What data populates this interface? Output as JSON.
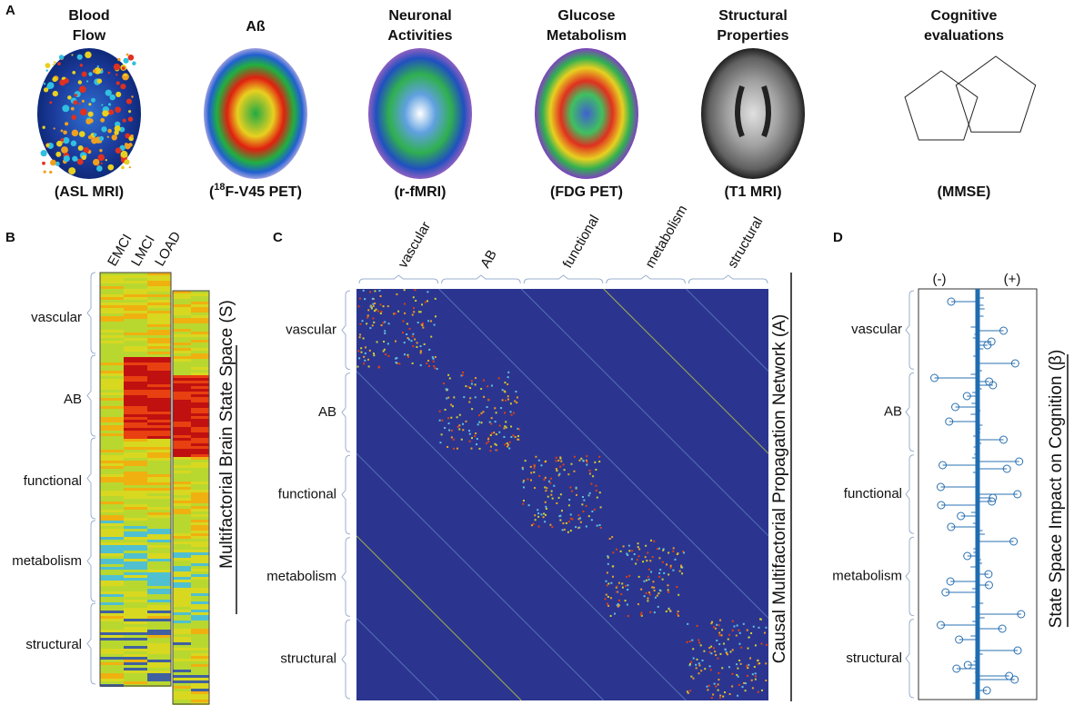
{
  "panel_a": {
    "label": "A",
    "items": [
      {
        "title": [
          "Blood",
          "Flow"
        ],
        "modality": "(ASL MRI)"
      },
      {
        "title": [
          "Aß"
        ],
        "modality": {
          "pre": "(",
          "sup": "18",
          "post": "F-V45 PET)"
        }
      },
      {
        "title": [
          "Neuronal",
          "Activities"
        ],
        "modality": "(r-fMRI)"
      },
      {
        "title": [
          "Glucose",
          "Metabolism"
        ],
        "modality": "(FDG PET)"
      },
      {
        "title": [
          "Structural",
          "Properties"
        ],
        "modality": "(T1 MRI)"
      },
      {
        "title": [
          "Cognitive",
          "evaluations"
        ],
        "modality": "(MMSE)"
      }
    ]
  },
  "panel_b": {
    "label": "B",
    "columns": [
      "EMCI",
      "LMCI",
      "LOAD"
    ],
    "rows": [
      "vascular",
      "AB",
      "functional",
      "metabolism",
      "structural"
    ],
    "side_label": "Multifactorial Brain State Space (S)"
  },
  "panel_c": {
    "label": "C",
    "columns": [
      "vascular",
      "AB",
      "functional",
      "metabolism",
      "structural"
    ],
    "rows": [
      "vascular",
      "AB",
      "functional",
      "metabolism",
      "structural"
    ],
    "side_label": "Causal Multifactorial Propagation Network (A)"
  },
  "panel_d": {
    "label": "D",
    "signs": [
      "(-)",
      "(+)"
    ],
    "rows": [
      "vascular",
      "AB",
      "functional",
      "metabolism",
      "structural"
    ],
    "side_label": "State Space Impact on Cognition (β)"
  }
}
